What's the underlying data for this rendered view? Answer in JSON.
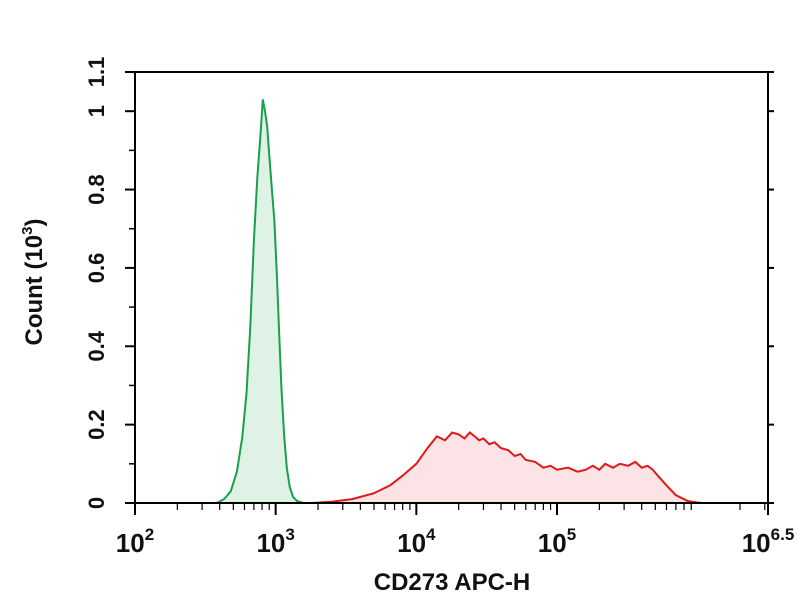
{
  "chart_data": {
    "type": "area",
    "title": "",
    "xlabel": "CD273 APC-H",
    "ylabel_main": "Count (10",
    "ylabel_exp": "3",
    "ylabel_close": ")",
    "x_scale": "log",
    "xlim": [
      100,
      3162277.66
    ],
    "ylim": [
      0,
      1.1
    ],
    "grid": false,
    "legend": "none",
    "x_ticks": [
      {
        "base": "10",
        "exp": "2",
        "value": 100
      },
      {
        "base": "10",
        "exp": "3",
        "value": 1000
      },
      {
        "base": "10",
        "exp": "4",
        "value": 10000
      },
      {
        "base": "10",
        "exp": "5",
        "value": 100000
      },
      {
        "base": "10",
        "exp": "6.5",
        "value": 3162277.66
      }
    ],
    "y_ticks": [
      {
        "label": "0",
        "value": 0
      },
      {
        "label": "0.2",
        "value": 0.2
      },
      {
        "label": "0.4",
        "value": 0.4
      },
      {
        "label": "0.6",
        "value": 0.6
      },
      {
        "label": "0.8",
        "value": 0.8
      },
      {
        "label": "1",
        "value": 1.0
      },
      {
        "label": "1.1",
        "value": 1.1
      }
    ],
    "series": [
      {
        "color": "#1aa04a",
        "fill": "#dff2e6",
        "x": [
          380,
          430,
          480,
          530,
          580,
          620,
          660,
          700,
          740,
          780,
          810,
          840,
          870,
          900,
          940,
          980,
          1020,
          1060,
          1100,
          1150,
          1200,
          1260,
          1330,
          1420,
          1500,
          1600
        ],
        "y": [
          0,
          0.01,
          0.03,
          0.08,
          0.17,
          0.28,
          0.45,
          0.67,
          0.83,
          0.94,
          1.03,
          1.0,
          0.96,
          0.89,
          0.8,
          0.72,
          0.58,
          0.43,
          0.29,
          0.17,
          0.09,
          0.04,
          0.015,
          0.005,
          0.002,
          0
        ]
      },
      {
        "color": "#e01818",
        "fill": "#fbe3e6",
        "x": [
          1800,
          2500,
          3500,
          5000,
          6500,
          8000,
          10000,
          12000,
          14000,
          16000,
          18000,
          20000,
          22000,
          24000,
          26000,
          28000,
          30000,
          33000,
          36000,
          40000,
          45000,
          50000,
          55000,
          60000,
          70000,
          80000,
          90000,
          100000,
          120000,
          140000,
          160000,
          180000,
          200000,
          220000,
          250000,
          280000,
          320000,
          360000,
          400000,
          440000,
          480000,
          520000,
          600000,
          700000,
          850000,
          1000000,
          1100000
        ],
        "y": [
          0,
          0.003,
          0.01,
          0.025,
          0.045,
          0.07,
          0.1,
          0.14,
          0.17,
          0.16,
          0.18,
          0.175,
          0.165,
          0.18,
          0.17,
          0.16,
          0.165,
          0.15,
          0.155,
          0.14,
          0.135,
          0.12,
          0.125,
          0.11,
          0.105,
          0.09,
          0.095,
          0.085,
          0.09,
          0.08,
          0.085,
          0.095,
          0.085,
          0.1,
          0.09,
          0.1,
          0.095,
          0.105,
          0.09,
          0.095,
          0.085,
          0.07,
          0.045,
          0.02,
          0.005,
          0.001,
          0
        ]
      }
    ]
  }
}
